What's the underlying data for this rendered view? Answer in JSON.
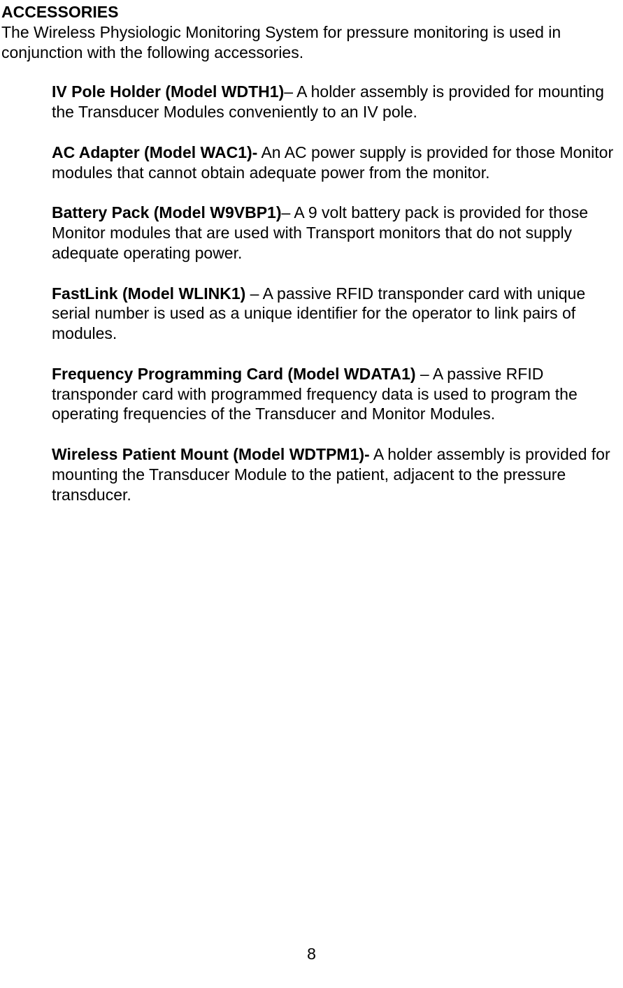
{
  "heading": "ACCESSORIES",
  "intro": "The Wireless Physiologic Monitoring System for pressure monitoring is used in conjunction with the following accessories.",
  "accessories": [
    {
      "name": "IV Pole Holder (Model WDTH1)",
      "separator": "– ",
      "description": "A holder assembly is provided for mounting the Transducer Modules conveniently to an IV pole."
    },
    {
      "name": "AC Adapter (Model WAC1)-",
      "separator": "  ",
      "description": "An AC power supply is provided for those Monitor modules that cannot obtain adequate power from the monitor."
    },
    {
      "name": "Battery Pack (Model W9VBP1)",
      "separator": "– ",
      "description": "A 9 volt battery pack is provided for those Monitor modules that are used with Transport monitors that do not supply adequate operating power."
    },
    {
      "name": "FastLink (Model WLINK1)",
      "separator": " – ",
      "description": "A passive RFID transponder card with unique serial number is used as a unique identifier for the operator to link pairs of modules."
    },
    {
      "name": "Frequency Programming Card (Model WDATA1)",
      "separator": " – ",
      "description": "A passive RFID transponder card with programmed frequency data is used to program the operating frequencies of the Transducer and Monitor Modules."
    },
    {
      "name": "Wireless Patient Mount (Model WDTPM1)-",
      "separator": " ",
      "description": "A holder assembly is provided for mounting the Transducer Module to the patient, adjacent to the pressure transducer."
    }
  ],
  "pageNumber": "8"
}
